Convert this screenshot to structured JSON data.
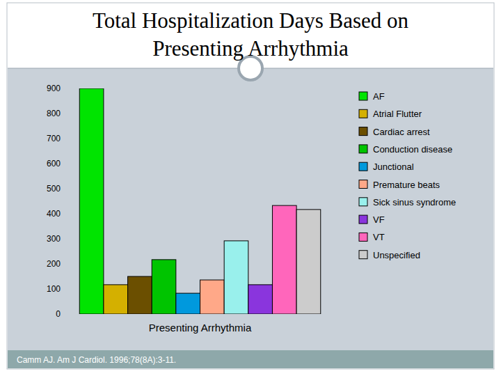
{
  "chart_data": {
    "type": "bar",
    "title": "Total Hospitalization Days Based on Presenting Arrhythmia",
    "categories": [
      "Presenting Arrhythmia"
    ],
    "series": [
      {
        "name": "AF",
        "color": "#00e400",
        "values": [
          900
        ]
      },
      {
        "name": "Atrial Flutter",
        "color": "#d4b000",
        "values": [
          117
        ]
      },
      {
        "name": "Cardiac arrest",
        "color": "#6b4f00",
        "values": [
          150
        ]
      },
      {
        "name": "Conduction disease",
        "color": "#00c400",
        "values": [
          217
        ]
      },
      {
        "name": "Junctional",
        "color": "#0099dd",
        "values": [
          83
        ]
      },
      {
        "name": "Premature beats",
        "color": "#ffa888",
        "values": [
          136
        ]
      },
      {
        "name": "Sick sinus syndrome",
        "color": "#99f0ec",
        "values": [
          292
        ]
      },
      {
        "name": "VF",
        "color": "#8a35dd",
        "values": [
          117
        ]
      },
      {
        "name": "VT",
        "color": "#ff66bb",
        "values": [
          433
        ]
      },
      {
        "name": "Unspecified",
        "color": "#cccccc",
        "values": [
          417
        ]
      }
    ],
    "ylim": [
      0,
      900
    ],
    "yticks": [
      0,
      100,
      200,
      300,
      400,
      500,
      600,
      700,
      800,
      900
    ],
    "grid": false,
    "legend": "right",
    "source": "Camm AJ. Am J Cardiol. 1996;78(8A):3-11."
  }
}
